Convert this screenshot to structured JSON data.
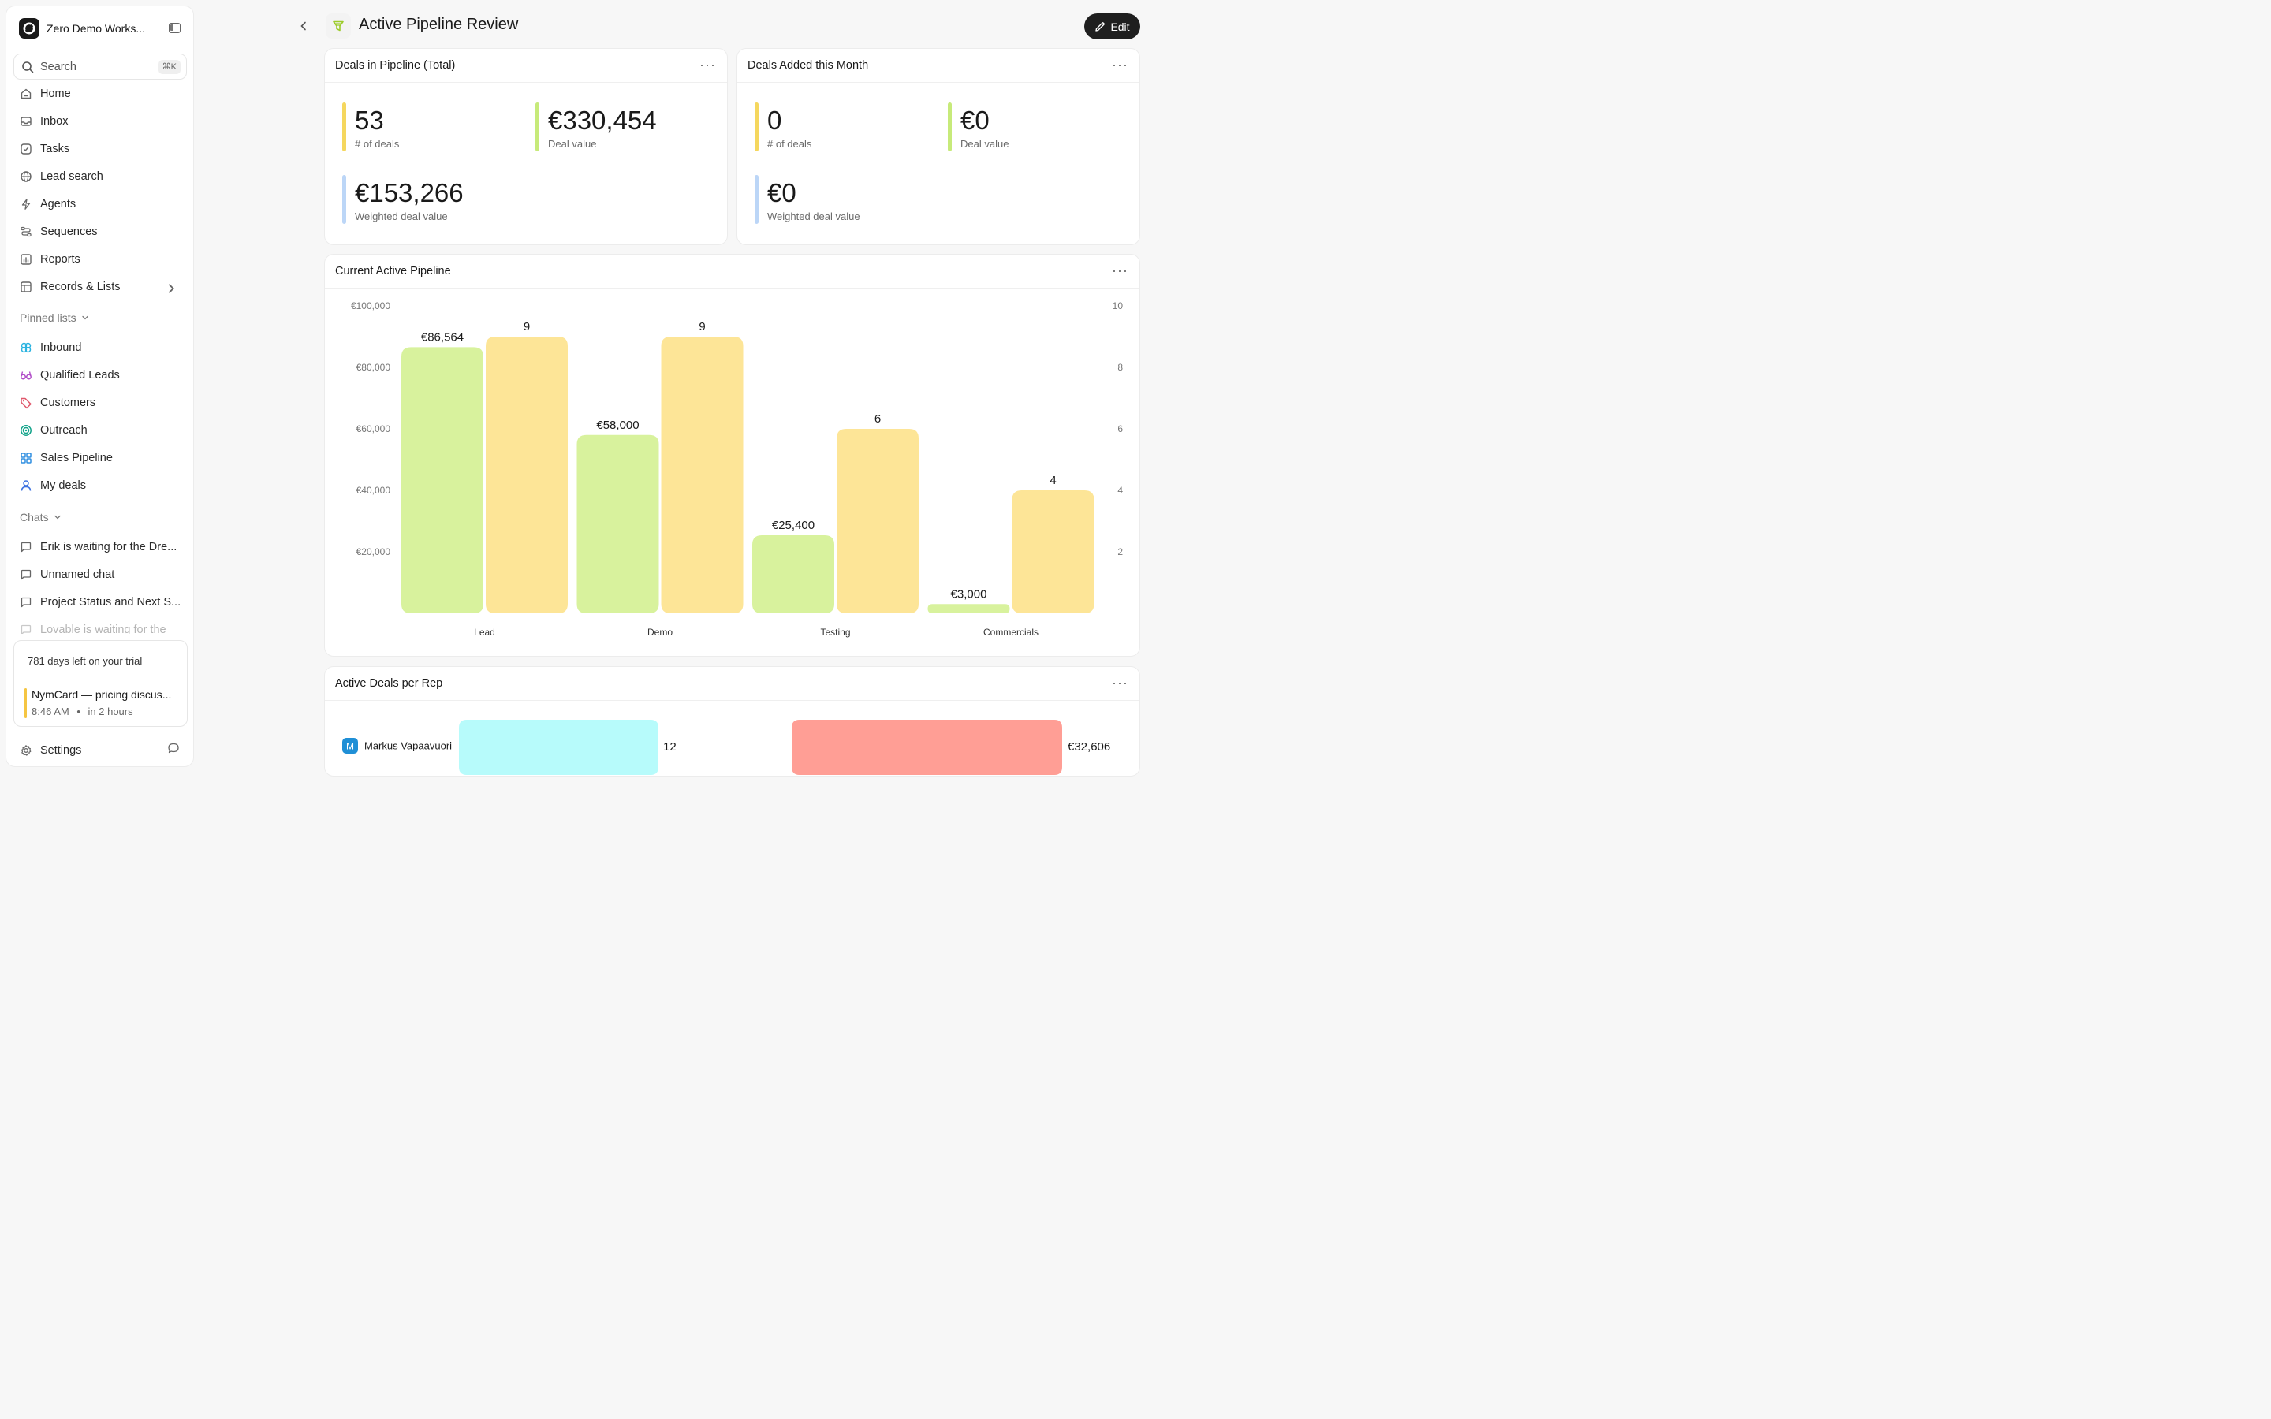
{
  "workspace": {
    "name": "Zero Demo Works..."
  },
  "search": {
    "label": "Search",
    "shortcut": "⌘K"
  },
  "nav": [
    {
      "label": "Home",
      "icon": "home-icon"
    },
    {
      "label": "Inbox",
      "icon": "inbox-icon"
    },
    {
      "label": "Tasks",
      "icon": "tasks-icon"
    },
    {
      "label": "Lead search",
      "icon": "globe-icon"
    },
    {
      "label": "Agents",
      "icon": "bolt-icon"
    },
    {
      "label": "Sequences",
      "icon": "sequences-icon"
    },
    {
      "label": "Reports",
      "icon": "reports-icon"
    },
    {
      "label": "Records & Lists",
      "icon": "table-icon"
    }
  ],
  "pinned_label": "Pinned lists",
  "pinned": [
    {
      "label": "Inbound",
      "icon": "inbound-icon",
      "color": "#2bb3e0"
    },
    {
      "label": "Qualified Leads",
      "icon": "glasses-icon",
      "color": "#b04cc8"
    },
    {
      "label": "Customers",
      "icon": "tag-icon",
      "color": "#e0576b"
    },
    {
      "label": "Outreach",
      "icon": "target-icon",
      "color": "#12a38a"
    },
    {
      "label": "Sales Pipeline",
      "icon": "grid-icon",
      "color": "#2f8ee0"
    },
    {
      "label": "My deals",
      "icon": "user-icon",
      "color": "#3a6fe0"
    }
  ],
  "chats_label": "Chats",
  "chats": [
    {
      "label": "Erik is waiting for the Dre..."
    },
    {
      "label": "Unnamed chat"
    },
    {
      "label": "Project Status and Next S..."
    },
    {
      "label": "Lovable is waiting for the"
    }
  ],
  "trial": {
    "text": "781 days left on your trial",
    "meeting_title": "NymCard — pricing discus...",
    "meeting_time": "8:46 AM",
    "meeting_when": "in 2 hours"
  },
  "settings_label": "Settings",
  "header": {
    "title": "Active Pipeline Review",
    "edit_label": "Edit"
  },
  "card1": {
    "title": "Deals in Pipeline (Total)",
    "metrics": [
      {
        "value": "53",
        "label": "# of deals",
        "color": "#f5d75e"
      },
      {
        "value": "€330,454",
        "label": "Deal value",
        "color": "#c7ea7a"
      },
      {
        "value": "€153,266",
        "label": "Weighted deal value",
        "color": "#bcd6f7"
      }
    ]
  },
  "card2": {
    "title": "Deals Added this Month",
    "metrics": [
      {
        "value": "0",
        "label": "# of deals",
        "color": "#f5d75e"
      },
      {
        "value": "€0",
        "label": "Deal value",
        "color": "#c7ea7a"
      },
      {
        "value": "€0",
        "label": "Weighted deal value",
        "color": "#bcd6f7"
      }
    ]
  },
  "more_label": "···",
  "chart_data": {
    "type": "bar",
    "title": "Current Active Pipeline",
    "categories": [
      "Lead",
      "Demo",
      "Testing",
      "Commercials"
    ],
    "series": [
      {
        "values": [
          86564,
          58000,
          25400,
          3000
        ],
        "labels": [
          "€86,564",
          "€58,000",
          "€25,400",
          "€3,000"
        ],
        "color": "#d8f29d",
        "axis": "left"
      },
      {
        "values": [
          9,
          9,
          6,
          4
        ],
        "labels": [
          "9",
          "9",
          "6",
          "4"
        ],
        "color": "#fde597",
        "axis": "right"
      }
    ],
    "y_left": {
      "ticks": [
        "€100,000",
        "€80,000",
        "€60,000",
        "€40,000",
        "€20,000"
      ],
      "tick_values": [
        100000,
        80000,
        60000,
        40000,
        20000
      ],
      "ylim": [
        0,
        100000
      ]
    },
    "y_right": {
      "ticks": [
        "10",
        "8",
        "6",
        "4",
        "2"
      ],
      "tick_values": [
        10,
        8,
        6,
        4,
        2
      ],
      "ylim": [
        0,
        10
      ]
    },
    "grid": false
  },
  "reps": {
    "title": "Active Deals per Rep",
    "rows": [
      {
        "initial": "M",
        "name": "Markus Vapaavuori",
        "deals": 12,
        "deals_label": "12",
        "value": 32606,
        "value_label": "€32,606",
        "deals_color": "#b7fbfb",
        "value_color": "#ff9e95",
        "avatar_color": "#1f8fd6"
      }
    ]
  }
}
